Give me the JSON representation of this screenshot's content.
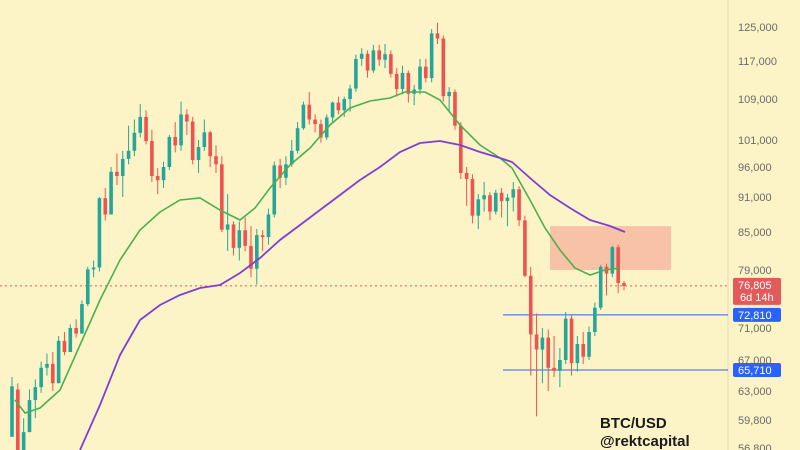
{
  "chart_data": {
    "type": "candlestick",
    "symbol_label": "BTC/USD",
    "watermark": "@rektcapital",
    "y_ticks": [
      125000,
      117000,
      109000,
      101000,
      96000,
      91000,
      85000,
      79000,
      71000,
      67000,
      63000,
      59800,
      56800
    ],
    "y_tick_labels": [
      "125,000",
      "117,000",
      "109,000",
      "101,000",
      "96,000",
      "91,000",
      "85,000",
      "79,000",
      "71,000",
      "67,000",
      "63,000",
      "59,800",
      "56,800"
    ],
    "price_marker": {
      "value": 76805,
      "label": "76,805",
      "countdown": "6d 14h",
      "color": "#e35a5a"
    },
    "levels": [
      {
        "value": 72810,
        "label": "72,810",
        "color": "#2962ff"
      },
      {
        "value": 65710,
        "label": "65,710",
        "color": "#2962ff"
      }
    ],
    "resistance_zone": {
      "low": 79000,
      "high": 86000,
      "color": "#f7b8a0"
    },
    "colors": {
      "up": "#26a69a",
      "down": "#ef5350",
      "ema_fast": "#4caf50",
      "ema_slow": "#7e3fd6",
      "background": "#fcf4c6"
    },
    "candles": [
      [
        58000,
        64800,
        58000,
        63600
      ],
      [
        63200,
        64000,
        55000,
        56500
      ],
      [
        56500,
        60000,
        55200,
        58500
      ],
      [
        58500,
        63200,
        58500,
        62000
      ],
      [
        62000,
        64500,
        60000,
        63500
      ],
      [
        63500,
        66800,
        62800,
        66000
      ],
      [
        66000,
        67800,
        65000,
        66500
      ],
      [
        66500,
        68000,
        63000,
        64000
      ],
      [
        64000,
        70000,
        64000,
        69400
      ],
      [
        69400,
        70500,
        67600,
        68000
      ],
      [
        68000,
        71500,
        68000,
        71000
      ],
      [
        71000,
        72200,
        69800,
        70300
      ],
      [
        70300,
        74800,
        70300,
        74300
      ],
      [
        74300,
        79500,
        74000,
        79100
      ],
      [
        79100,
        80500,
        78000,
        79400
      ],
      [
        79400,
        91000,
        78800,
        90800
      ],
      [
        90800,
        92500,
        87000,
        88000
      ],
      [
        88000,
        96000,
        88000,
        95200
      ],
      [
        95200,
        98500,
        93000,
        94500
      ],
      [
        94500,
        99000,
        91000,
        97500
      ],
      [
        97500,
        103800,
        96500,
        99000
      ],
      [
        99000,
        105000,
        98000,
        102400
      ],
      [
        102400,
        108000,
        101500,
        105500
      ],
      [
        105500,
        106800,
        100200,
        100800
      ],
      [
        100800,
        103000,
        93500,
        94500
      ],
      [
        94500,
        95800,
        91500,
        93800
      ],
      [
        93800,
        97000,
        92500,
        96000
      ],
      [
        96000,
        102000,
        95500,
        101600
      ],
      [
        101600,
        104500,
        98700,
        100000
      ],
      [
        100000,
        108500,
        99000,
        106000
      ],
      [
        106000,
        107000,
        102000,
        104600
      ],
      [
        104600,
        105500,
        96500,
        97300
      ],
      [
        97300,
        101000,
        95000,
        99700
      ],
      [
        99700,
        105000,
        99000,
        102500
      ],
      [
        102500,
        102800,
        96000,
        98000
      ],
      [
        98000,
        100000,
        95000,
        96500
      ],
      [
        96500,
        98000,
        85000,
        85400
      ],
      [
        85400,
        91500,
        82000,
        86300
      ],
      [
        86300,
        86800,
        81300,
        82500
      ],
      [
        82500,
        86800,
        80500,
        85300
      ],
      [
        85300,
        87500,
        82000,
        82800
      ],
      [
        82800,
        86000,
        78000,
        79200
      ],
      [
        79200,
        85500,
        77000,
        84500
      ],
      [
        84500,
        85300,
        82000,
        84200
      ],
      [
        84200,
        89000,
        83000,
        88000
      ],
      [
        88000,
        97000,
        87500,
        96300
      ],
      [
        96300,
        97500,
        92500,
        94200
      ],
      [
        94200,
        98000,
        93000,
        96500
      ],
      [
        96500,
        101000,
        96000,
        99000
      ],
      [
        99000,
        104500,
        98500,
        103300
      ],
      [
        103300,
        108500,
        103000,
        107900
      ],
      [
        107900,
        110500,
        104000,
        105000
      ],
      [
        105000,
        106000,
        102500,
        104100
      ],
      [
        104100,
        105000,
        100500,
        101500
      ],
      [
        101500,
        106000,
        101000,
        105400
      ],
      [
        105400,
        108500,
        104500,
        108300
      ],
      [
        108300,
        109500,
        106000,
        106800
      ],
      [
        106800,
        109500,
        105500,
        109000
      ],
      [
        109000,
        112000,
        106500,
        111200
      ],
      [
        111200,
        118500,
        110500,
        117500
      ],
      [
        117500,
        120000,
        116000,
        118700
      ],
      [
        118700,
        119500,
        113500,
        115000
      ],
      [
        115000,
        120800,
        114500,
        119500
      ],
      [
        119500,
        120800,
        116000,
        117300
      ],
      [
        117300,
        121000,
        115500,
        118600
      ],
      [
        118600,
        119500,
        113500,
        114300
      ],
      [
        114300,
        115500,
        109500,
        111100
      ],
      [
        111100,
        116000,
        110000,
        114500
      ],
      [
        114500,
        115000,
        108300,
        110100
      ],
      [
        110100,
        112000,
        107800,
        111000
      ],
      [
        111000,
        117500,
        110000,
        115800
      ],
      [
        115800,
        117500,
        112500,
        113400
      ],
      [
        113400,
        124500,
        112500,
        123500
      ],
      [
        123500,
        126000,
        121000,
        122300
      ],
      [
        122300,
        123000,
        108500,
        109600
      ],
      [
        109600,
        111500,
        106500,
        110500
      ],
      [
        110500,
        111000,
        103000,
        103800
      ],
      [
        103800,
        104500,
        94000,
        95000
      ],
      [
        95000,
        96000,
        89500,
        94000
      ],
      [
        94000,
        94800,
        86500,
        87800
      ],
      [
        87800,
        91500,
        85500,
        90600
      ],
      [
        90600,
        93500,
        88500,
        91300
      ],
      [
        91300,
        91800,
        87000,
        88500
      ],
      [
        88500,
        92200,
        88000,
        91700
      ],
      [
        91700,
        92500,
        87500,
        90300
      ],
      [
        90300,
        91500,
        86000,
        90900
      ],
      [
        90900,
        93500,
        88500,
        92300
      ],
      [
        92300,
        92800,
        86000,
        87000
      ],
      [
        87000,
        87800,
        78000,
        78200
      ],
      [
        78200,
        79500,
        65000,
        70200
      ],
      [
        70200,
        73000,
        60200,
        68300
      ],
      [
        68300,
        71000,
        64000,
        69800
      ],
      [
        69800,
        70800,
        63000,
        66000
      ],
      [
        66000,
        70000,
        64800,
        65600
      ],
      [
        65600,
        68500,
        63500,
        67000
      ],
      [
        67000,
        73200,
        66500,
        72300
      ],
      [
        72300,
        72800,
        65000,
        66600
      ],
      [
        66600,
        70000,
        65500,
        69000
      ],
      [
        69000,
        70500,
        66500,
        67400
      ],
      [
        67400,
        71200,
        67000,
        70500
      ],
      [
        70500,
        74500,
        70000,
        73800
      ],
      [
        73800,
        79800,
        73500,
        79500
      ],
      [
        79500,
        80000,
        75500,
        78500
      ],
      [
        78500,
        82800,
        78000,
        82600
      ],
      [
        82600,
        83000,
        75800,
        77200
      ],
      [
        77200,
        77500,
        76200,
        76800
      ]
    ],
    "ema_fast_points": [
      [
        15,
        400
      ],
      [
        25,
        413
      ],
      [
        40,
        408
      ],
      [
        60,
        390
      ],
      [
        80,
        345
      ],
      [
        100,
        300
      ],
      [
        120,
        260
      ],
      [
        140,
        230
      ],
      [
        160,
        212
      ],
      [
        180,
        200
      ],
      [
        200,
        198
      ],
      [
        220,
        210
      ],
      [
        240,
        220
      ],
      [
        255,
        208
      ],
      [
        270,
        188
      ],
      [
        290,
        165
      ],
      [
        310,
        148
      ],
      [
        330,
        125
      ],
      [
        350,
        108
      ],
      [
        370,
        101
      ],
      [
        390,
        98
      ],
      [
        405,
        92
      ],
      [
        425,
        92
      ],
      [
        440,
        100
      ],
      [
        460,
        125
      ],
      [
        480,
        145
      ],
      [
        500,
        158
      ],
      [
        512,
        168
      ],
      [
        530,
        200
      ],
      [
        545,
        228
      ],
      [
        560,
        250
      ],
      [
        575,
        268
      ],
      [
        590,
        275
      ],
      [
        605,
        270
      ],
      [
        620,
        268
      ]
    ],
    "ema_slow_points": [
      [
        80,
        450
      ],
      [
        100,
        405
      ],
      [
        120,
        355
      ],
      [
        140,
        320
      ],
      [
        160,
        305
      ],
      [
        180,
        295
      ],
      [
        200,
        288
      ],
      [
        220,
        285
      ],
      [
        240,
        273
      ],
      [
        260,
        258
      ],
      [
        280,
        240
      ],
      [
        300,
        225
      ],
      [
        320,
        210
      ],
      [
        340,
        195
      ],
      [
        360,
        180
      ],
      [
        380,
        167
      ],
      [
        400,
        152
      ],
      [
        420,
        143
      ],
      [
        440,
        141
      ],
      [
        460,
        145
      ],
      [
        480,
        152
      ],
      [
        500,
        158
      ],
      [
        512,
        162
      ],
      [
        530,
        178
      ],
      [
        550,
        195
      ],
      [
        570,
        208
      ],
      [
        590,
        220
      ],
      [
        610,
        226
      ],
      [
        625,
        232
      ]
    ]
  }
}
